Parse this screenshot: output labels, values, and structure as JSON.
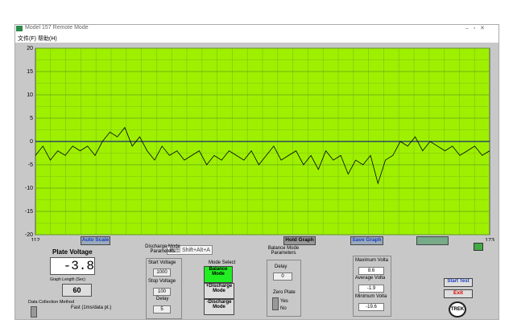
{
  "window": {
    "title": "Model 157 Remote Mode",
    "menu": [
      "文件(F)",
      "帮助(H)"
    ]
  },
  "chart_data": {
    "type": "line",
    "color": "#000000",
    "grid": true,
    "reference_line": 0,
    "x": [
      112,
      113,
      114,
      115,
      116,
      117,
      118,
      119,
      120,
      121,
      122,
      123,
      124,
      125,
      126,
      127,
      128,
      129,
      130,
      131,
      132,
      133,
      134,
      135,
      136,
      137,
      138,
      139,
      140,
      141,
      142,
      143,
      144,
      145,
      146,
      147,
      148,
      149,
      150,
      151,
      152,
      153,
      154,
      155,
      156,
      157,
      158,
      159,
      160,
      161,
      162,
      163,
      164,
      165,
      166,
      167,
      168,
      169,
      170,
      171,
      172,
      173
    ],
    "values": [
      -3,
      -1,
      -4,
      -2,
      -3,
      -1,
      -2,
      -1,
      -3,
      0,
      2,
      1,
      3,
      -1,
      1,
      -2,
      -4,
      -1,
      -3,
      -2,
      -4,
      -3,
      -2,
      -5,
      -3,
      -4,
      -2,
      -3,
      -4,
      -2,
      -5,
      -3,
      -1,
      -4,
      -3,
      -2,
      -5,
      -3,
      -6,
      -2,
      -4,
      -3,
      -7,
      -4,
      -5,
      -3,
      -9,
      -4,
      -3,
      0,
      -1,
      1,
      -2,
      0,
      -1,
      -2,
      -1,
      -3,
      -2,
      -1,
      -3,
      -2
    ],
    "xlim": [
      112,
      173
    ],
    "xticks": [
      112,
      173
    ],
    "ylim": [
      -20,
      20
    ],
    "yticks": [
      -20,
      -15,
      -10,
      -5,
      0,
      5,
      10,
      15,
      20
    ]
  },
  "buttons": {
    "auto_scale": "Auto Scale",
    "hold_graph": "Hold Graph",
    "save_graph": "Save Graph",
    "start_test": "Start Test",
    "exit": "Exit"
  },
  "tooltip": "截图 Shift+Alt+A",
  "plate": {
    "label": "Plate Voltage",
    "value": "-3.8",
    "graph_length_label": "Graph Length (Sec)",
    "graph_length": "60",
    "method_label": "Data Collection Method",
    "method": "Fast (1ms/data pt.)"
  },
  "discharge": {
    "title": "Discharge Mode Parameters",
    "start_label": "Start Voltage",
    "start": "1000",
    "stop_label": "Stop Voltage",
    "stop": "100",
    "delay_label": "Delay",
    "delay": "5"
  },
  "mode_select": {
    "title": "Mode Select",
    "balance": "Balance Mode",
    "plus": "+Discharge Mode",
    "minus": "-Discharge Mode"
  },
  "balance": {
    "title": "Balance Mode Parameters",
    "delay_label": "Delay",
    "delay": "0",
    "zero_plate": "Zero Plate",
    "yes": "Yes",
    "no": "No"
  },
  "stats": {
    "max_label": "Maximum Volta",
    "max": "8.6",
    "avg_label": "Average Volta",
    "avg": "-1.9",
    "min_label": "Minimum Volta",
    "min": "-19.6"
  },
  "logo": "TREK"
}
